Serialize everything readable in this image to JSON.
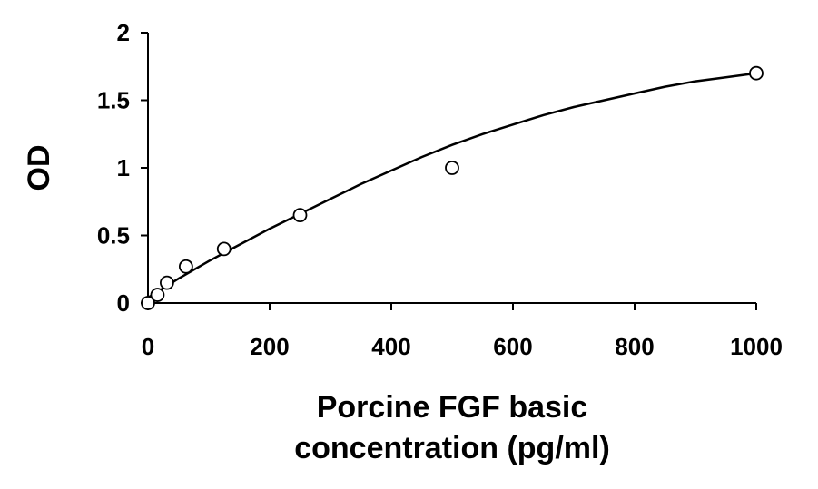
{
  "chart_data": {
    "type": "scatter",
    "title": "",
    "xlabel_lines": [
      "Porcine FGF basic",
      "concentration (pg/ml)"
    ],
    "ylabel": "OD",
    "xlim": [
      0,
      1000
    ],
    "ylim": [
      0,
      2
    ],
    "x_ticks": [
      0,
      200,
      400,
      600,
      800,
      1000
    ],
    "y_ticks": [
      0,
      0.5,
      1,
      1.5,
      2
    ],
    "x_tick_labels": [
      "0",
      "200",
      "400",
      "600",
      "800",
      "1000"
    ],
    "y_tick_labels": [
      "0",
      "0.5",
      "1",
      "1.5",
      "2"
    ],
    "grid": false,
    "legend": "none",
    "series": [
      {
        "kind": "points",
        "marker": "open-circle",
        "x": [
          0,
          15.6,
          31.2,
          62.5,
          125,
          250,
          500,
          1000
        ],
        "y": [
          0.0,
          0.06,
          0.15,
          0.27,
          0.4,
          0.65,
          1.0,
          1.7
        ]
      },
      {
        "kind": "fitted-curve",
        "x": [
          0,
          50,
          100,
          150,
          200,
          250,
          300,
          350,
          400,
          450,
          500,
          550,
          600,
          650,
          700,
          750,
          800,
          850,
          900,
          950,
          1000
        ],
        "y": [
          0.04,
          0.18,
          0.31,
          0.43,
          0.55,
          0.66,
          0.77,
          0.88,
          0.98,
          1.08,
          1.17,
          1.25,
          1.32,
          1.39,
          1.45,
          1.5,
          1.55,
          1.6,
          1.64,
          1.67,
          1.7
        ]
      }
    ],
    "colors": {
      "axis": "#000000",
      "marker_stroke": "#000000",
      "marker_fill": "#ffffff",
      "curve": "#000000"
    }
  }
}
